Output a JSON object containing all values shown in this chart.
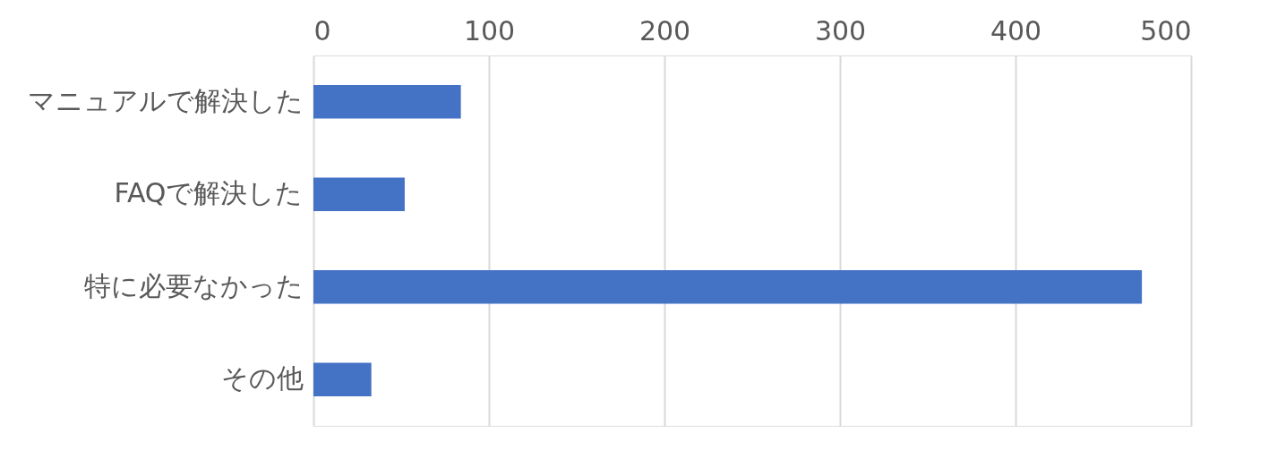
{
  "chart_data": {
    "type": "bar",
    "orientation": "horizontal",
    "categories": [
      "マニュアルで解決した",
      "FAQで解決した",
      "特に必要なかった",
      "その他"
    ],
    "values": [
      84,
      52,
      472,
      33
    ],
    "color": "#4472c4",
    "xlim": [
      0,
      500
    ],
    "xticks": [
      0,
      100,
      200,
      300,
      400,
      500
    ],
    "grid": "x"
  }
}
